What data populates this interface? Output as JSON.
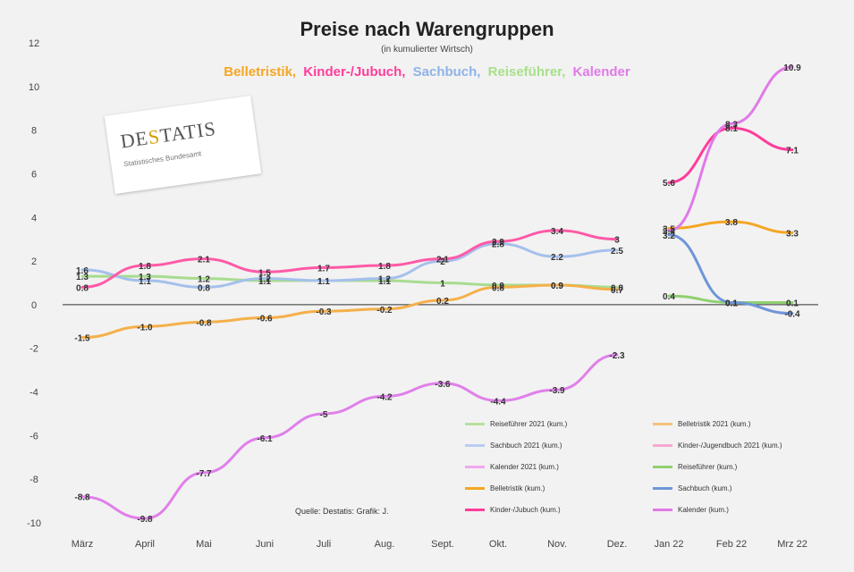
{
  "title": "Preise nach Warengruppen",
  "subtitle": "(in kumulierter Wirtsch)",
  "series_header": [
    {
      "text": "Belletristik,",
      "color": "#f5a623"
    },
    {
      "text": "Kinder-/Jubuch,",
      "color": "#ff3d9a"
    },
    {
      "text": "Sachbuch,",
      "color": "#8fb3e8"
    },
    {
      "text": "Reiseführer,",
      "color": "#a8e08a"
    },
    {
      "text": "Kalender",
      "color": "#e07ae8"
    }
  ],
  "logo": {
    "text_a": "DE",
    "text_accent": "S",
    "text_b": "TATIS",
    "sub": "Statistisches Bundesamt"
  },
  "source": "Quelle: Destatis: Grafik: J.",
  "legend": [
    {
      "label": "Reiseführer 2021 (kum.)",
      "color": "#b8e0a0"
    },
    {
      "label": "Belletristik 2021 (kum.)",
      "color": "#f7c27a"
    },
    {
      "label": "Sachbuch 2021 (kum.)",
      "color": "#b8cdf0"
    },
    {
      "label": "Kinder-/Jugendbuch 2021 (kum.)",
      "color": "#f7a8d0"
    },
    {
      "label": "Kalender 2021 (kum.)",
      "color": "#f0a8f0"
    },
    {
      "label": "Reiseführer (kum.)",
      "color": "#8fd070"
    },
    {
      "label": "Belletristik (kum.)",
      "color": "#f5a623"
    },
    {
      "label": "Sachbuch (kum.)",
      "color": "#6f96d8"
    },
    {
      "label": "Kinder-/Jubuch (kum.)",
      "color": "#ff3d9a"
    },
    {
      "label": "Kalender (kum.)",
      "color": "#e07ae8"
    }
  ],
  "chart_data": {
    "type": "line",
    "title": "Preise nach Warengruppen",
    "categories": [
      "März",
      "April",
      "Mai",
      "Juni",
      "Juli",
      "Aug.",
      "Sept.",
      "Okt.",
      "Nov.",
      "Dez.",
      "Jan 22",
      "Feb 22",
      "Mrz 22"
    ],
    "ylim": [
      -10,
      12
    ],
    "yticks": [
      12,
      10,
      8,
      6,
      4,
      2,
      0,
      -2,
      -4,
      -6,
      -8,
      -10
    ],
    "grid": false,
    "series": [
      {
        "name": "Reiseführer 2021 (kum.)",
        "color": "#a8dc90",
        "labelColor": "#333",
        "values": [
          1.3,
          1.3,
          1.2,
          1.1,
          1.1,
          1.1,
          1,
          0.9,
          0.9,
          0.8,
          null,
          null,
          null
        ]
      },
      {
        "name": "Belletristik 2021 (kum.)",
        "color": "#f5b04a",
        "labelColor": "#333",
        "values": [
          -1.5,
          -1,
          -0.8,
          -0.6,
          -0.3,
          -0.2,
          0.2,
          0.8,
          0.9,
          0.7,
          null,
          null,
          null
        ]
      },
      {
        "name": "Sachbuch 2021 (kum.)",
        "color": "#a5c0ec",
        "labelColor": "#333",
        "values": [
          1.6,
          1.1,
          0.8,
          1.2,
          1.1,
          1.2,
          2,
          2.8,
          2.2,
          2.5,
          null,
          null,
          null
        ]
      },
      {
        "name": "Kinder-/Jugendbuch 2021 (kum.)",
        "color": "#ff5aa8",
        "labelColor": "#333",
        "values": [
          0.8,
          1.8,
          2.1,
          1.5,
          1.7,
          1.8,
          2.1,
          2.9,
          3.4,
          3,
          null,
          null,
          null
        ]
      },
      {
        "name": "Kalender 2021 (kum.)",
        "color": "#e080ea",
        "labelColor": "#333",
        "values": [
          -8.8,
          -9.8,
          -7.7,
          -6.1,
          -5,
          -4.2,
          -3.6,
          -4.4,
          -3.9,
          -2.3,
          null,
          null,
          null
        ]
      },
      {
        "name": "Reiseführer (kum.)",
        "color": "#8fd070",
        "labelColor": "#333",
        "values": [
          null,
          null,
          null,
          null,
          null,
          null,
          null,
          null,
          null,
          null,
          0.4,
          0.1,
          0.1
        ]
      },
      {
        "name": "Belletristik (kum.)",
        "color": "#f5a623",
        "labelColor": "#333",
        "values": [
          null,
          null,
          null,
          null,
          null,
          null,
          null,
          null,
          null,
          null,
          3.5,
          3.8,
          3.3
        ]
      },
      {
        "name": "Sachbuch (kum.)",
        "color": "#6f96d8",
        "labelColor": "#333",
        "values": [
          null,
          null,
          null,
          null,
          null,
          null,
          null,
          null,
          null,
          null,
          3.2,
          0.1,
          -0.4
        ]
      },
      {
        "name": "Kinder-/Jubuch (kum.)",
        "color": "#ff3d9a",
        "labelColor": "#333",
        "values": [
          null,
          null,
          null,
          null,
          null,
          null,
          null,
          null,
          null,
          null,
          5.6,
          8.1,
          7.1
        ]
      },
      {
        "name": "Kalender (kum.)",
        "color": "#e07ae8",
        "labelColor": "#333",
        "values": [
          null,
          null,
          null,
          null,
          null,
          null,
          null,
          null,
          null,
          null,
          3.4,
          8.3,
          10.9
        ]
      }
    ],
    "point_labels": [
      {
        "series": 0,
        "labels": [
          "1.3",
          "1.3",
          "1.2",
          "1.1",
          "1.1",
          "1.1",
          "1",
          "0.9",
          "0.9",
          "0.8",
          null,
          null,
          null
        ]
      },
      {
        "series": 1,
        "labels": [
          "-1.5",
          "-1.0",
          "-0.8",
          "-0.6",
          "-0.3",
          "-0.2",
          "0.2",
          "0.8",
          "0.9",
          "0.7",
          null,
          null,
          null
        ]
      },
      {
        "series": 2,
        "labels": [
          "1.6",
          "1.1",
          "0.8",
          "1.2",
          "1.1",
          "1.2",
          "2",
          "2.8",
          "2.2",
          "2.5",
          null,
          null,
          null
        ]
      },
      {
        "series": 3,
        "labels": [
          "0.8",
          "1.8",
          "2.1",
          "1.5",
          "1.7",
          "1.8",
          "2.1",
          "2.9",
          "3.4",
          "3",
          null,
          null,
          null
        ]
      },
      {
        "series": 4,
        "labels": [
          "-8.8",
          "-9.8",
          "-7.7",
          "-6.1",
          "-5",
          "-4.2",
          "-3.6",
          "-4.4",
          "-3.9",
          "-2.3",
          null,
          null,
          null
        ]
      },
      {
        "series": 5,
        "labels": [
          null,
          null,
          null,
          null,
          null,
          null,
          null,
          null,
          null,
          null,
          "0.4",
          "0.1",
          "0.1"
        ]
      },
      {
        "series": 6,
        "labels": [
          null,
          null,
          null,
          null,
          null,
          null,
          null,
          null,
          null,
          null,
          "3.5",
          "3.8",
          "3.3"
        ]
      },
      {
        "series": 7,
        "labels": [
          null,
          null,
          null,
          null,
          null,
          null,
          null,
          null,
          null,
          null,
          "3.2",
          "0.1",
          "-0.4"
        ]
      },
      {
        "series": 8,
        "labels": [
          null,
          null,
          null,
          null,
          null,
          null,
          null,
          null,
          null,
          null,
          "5.6",
          "8.1",
          "7.1"
        ]
      },
      {
        "series": 9,
        "labels": [
          null,
          null,
          null,
          null,
          null,
          null,
          null,
          null,
          null,
          null,
          "3.4",
          "8.3",
          "10.9"
        ]
      }
    ]
  }
}
